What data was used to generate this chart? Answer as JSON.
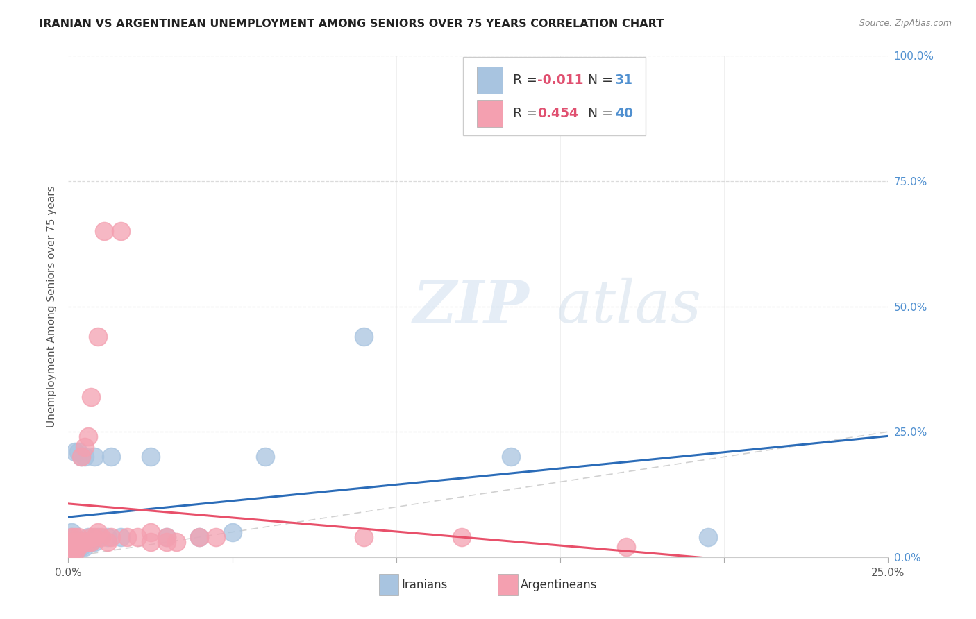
{
  "title": "IRANIAN VS ARGENTINEAN UNEMPLOYMENT AMONG SENIORS OVER 75 YEARS CORRELATION CHART",
  "source": "Source: ZipAtlas.com",
  "ylabel": "Unemployment Among Seniors over 75 years",
  "xlim": [
    0.0,
    0.25
  ],
  "ylim": [
    0.0,
    1.0
  ],
  "legend_R_iranian": "-0.011",
  "legend_N_iranian": "31",
  "legend_R_argentinean": "0.454",
  "legend_N_argentinean": "40",
  "iranian_color": "#a8c4e0",
  "argentinean_color": "#f4a0b0",
  "iranian_line_color": "#2b6cb8",
  "argentinean_line_color": "#e8506a",
  "diagonal_color": "#cccccc",
  "watermark_zip": "ZIP",
  "watermark_atlas": "atlas",
  "background_color": "#ffffff",
  "grid_color": "#d8d8d8",
  "iranian_x": [
    0.001,
    0.001,
    0.001,
    0.001,
    0.002,
    0.002,
    0.002,
    0.003,
    0.003,
    0.003,
    0.004,
    0.004,
    0.005,
    0.005,
    0.005,
    0.006,
    0.007,
    0.008,
    0.008,
    0.009,
    0.012,
    0.013,
    0.016,
    0.025,
    0.03,
    0.04,
    0.05,
    0.06,
    0.09,
    0.135,
    0.195
  ],
  "iranian_y": [
    0.02,
    0.03,
    0.04,
    0.05,
    0.02,
    0.03,
    0.21,
    0.02,
    0.03,
    0.21,
    0.02,
    0.2,
    0.02,
    0.03,
    0.2,
    0.04,
    0.03,
    0.03,
    0.2,
    0.04,
    0.04,
    0.2,
    0.04,
    0.2,
    0.04,
    0.04,
    0.05,
    0.2,
    0.44,
    0.2,
    0.04
  ],
  "argentinean_x": [
    0.001,
    0.001,
    0.001,
    0.001,
    0.002,
    0.002,
    0.002,
    0.002,
    0.003,
    0.003,
    0.003,
    0.004,
    0.004,
    0.005,
    0.005,
    0.006,
    0.006,
    0.007,
    0.007,
    0.007,
    0.008,
    0.009,
    0.009,
    0.01,
    0.011,
    0.012,
    0.013,
    0.016,
    0.018,
    0.021,
    0.025,
    0.025,
    0.03,
    0.03,
    0.033,
    0.04,
    0.045,
    0.09,
    0.12,
    0.17
  ],
  "argentinean_y": [
    0.01,
    0.02,
    0.03,
    0.04,
    0.01,
    0.02,
    0.03,
    0.04,
    0.02,
    0.03,
    0.04,
    0.03,
    0.2,
    0.03,
    0.22,
    0.03,
    0.24,
    0.03,
    0.04,
    0.32,
    0.04,
    0.44,
    0.05,
    0.04,
    0.65,
    0.03,
    0.04,
    0.65,
    0.04,
    0.04,
    0.05,
    0.03,
    0.03,
    0.04,
    0.03,
    0.04,
    0.04,
    0.04,
    0.04,
    0.02
  ],
  "axis_tick_color": "#5090d0",
  "axis_label_color": "#555555"
}
